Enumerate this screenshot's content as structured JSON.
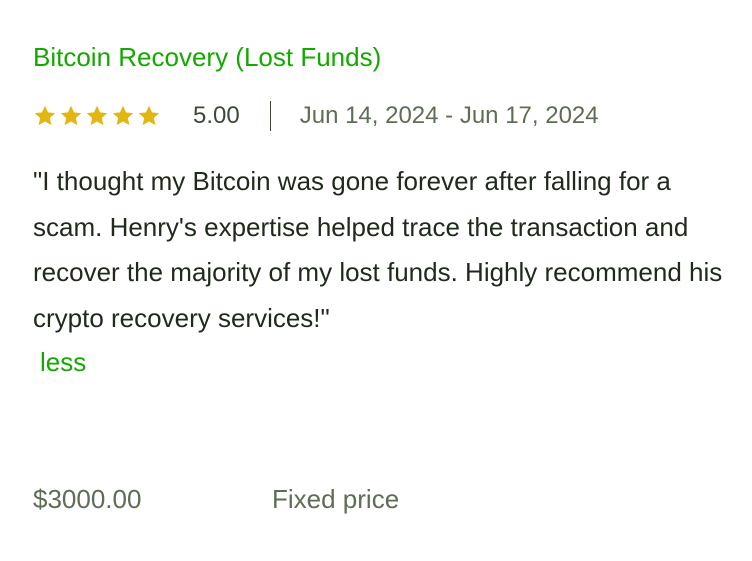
{
  "job": {
    "title": "Bitcoin Recovery (Lost Funds)",
    "rating": 5,
    "rating_max": 5,
    "score": "5.00",
    "dates": "Jun 14, 2024 - Jun 17, 2024",
    "review": "\"I thought my Bitcoin was gone forever after falling for a scam. Henry's expertise helped trace the transaction and recover the majority of my lost funds. Highly recommend his crypto recovery services!\"",
    "less_label": "less",
    "price": "$3000.00",
    "price_type": "Fixed price"
  },
  "colors": {
    "accent": "#14a800",
    "star": "#e2b714",
    "muted_text": "#5e6d55",
    "body_text": "#1f2a1c"
  },
  "icons": {
    "star": "star-icon"
  }
}
